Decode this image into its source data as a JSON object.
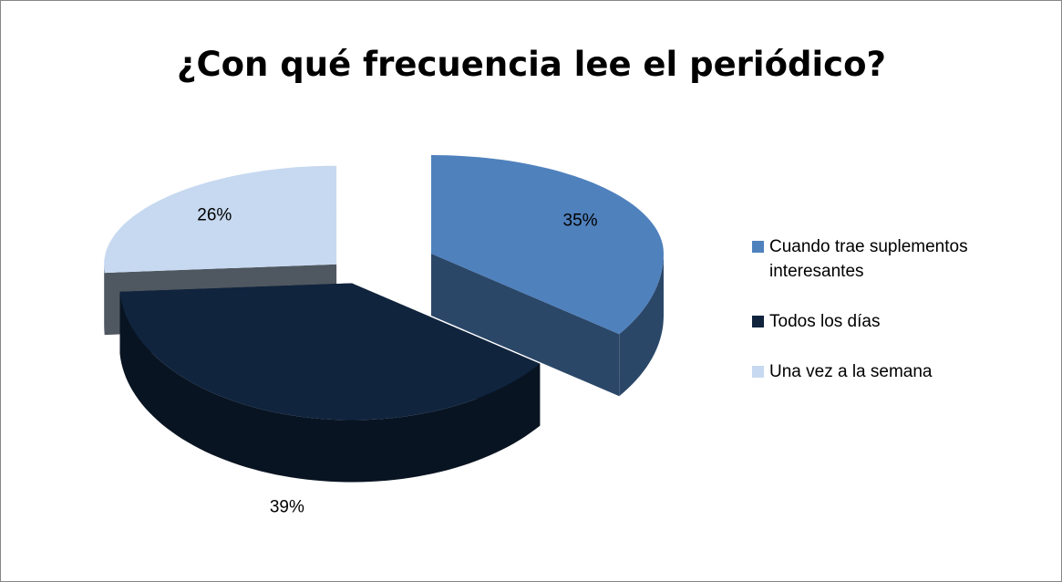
{
  "chart_data": {
    "type": "pie3d",
    "title": "¿Con qué frecuencia lee el periódico?",
    "categories": [
      "Cuando trae suplementos interesantes",
      "Todos los días",
      "Una vez a la semana"
    ],
    "values": [
      35,
      39,
      26
    ],
    "value_labels": [
      "35%",
      "39%",
      "26%"
    ],
    "colors": [
      "#4f81bd",
      "#10243e",
      "#c6d9f0"
    ],
    "legend": "right"
  }
}
